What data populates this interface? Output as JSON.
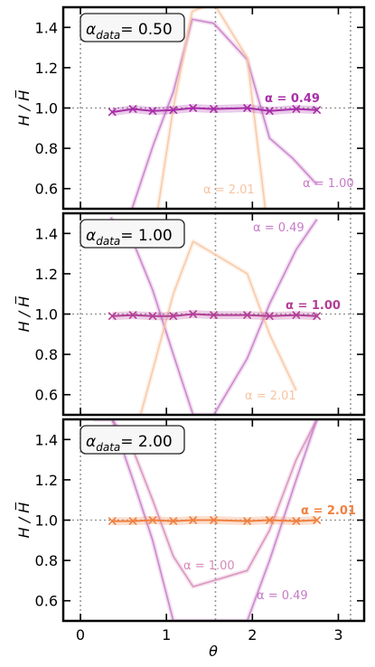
{
  "chart_data": [
    {
      "type": "line",
      "panel_label": {
        "prefix": "α",
        "subscript": "data",
        "value": "= 0.50"
      },
      "ylim": [
        0.5,
        1.5
      ],
      "ylabel": "H / H̅",
      "yticks": [
        "0.6",
        "0.8",
        "1.0",
        "1.2",
        "1.4"
      ],
      "xlim": [
        -0.2,
        3.3
      ],
      "vlines": [
        0,
        1.5708,
        3.1416
      ],
      "hline": 1.0,
      "grid": false,
      "series": [
        {
          "name": "α = 0.49",
          "label_text": "α = 0.49",
          "bold": true,
          "color": "#a82ea8",
          "markers": true,
          "x": [
            0.37,
            0.61,
            0.84,
            1.08,
            1.31,
            1.55,
            1.94,
            2.2,
            2.51,
            2.75
          ],
          "y": [
            0.98,
            0.995,
            0.985,
            0.99,
            1.0,
            0.995,
            1.0,
            0.985,
            0.995,
            0.99
          ]
        },
        {
          "name": "α = 1.00",
          "label_text": "α = 1.00",
          "bold": false,
          "color": "#c77ac7",
          "markers": false,
          "x": [
            0.6,
            0.85,
            1.08,
            1.3,
            1.55,
            1.94,
            2.2,
            2.47,
            2.75
          ],
          "y": [
            0.5,
            0.82,
            1.08,
            1.44,
            1.42,
            1.24,
            0.85,
            0.75,
            0.62
          ]
        },
        {
          "name": "α = 2.01",
          "label_text": "α = 2.01",
          "bold": false,
          "color": "#f7c4a0",
          "markers": false,
          "x": [
            0.9,
            1.08,
            1.3,
            1.55,
            1.94,
            2.15
          ],
          "y": [
            0.5,
            1.0,
            1.48,
            1.52,
            1.25,
            0.5
          ]
        }
      ]
    },
    {
      "type": "line",
      "panel_label": {
        "prefix": "α",
        "subscript": "data",
        "value": "= 1.00"
      },
      "ylim": [
        0.5,
        1.5
      ],
      "ylabel": "H / H̅",
      "yticks": [
        "0.6",
        "0.8",
        "1.0",
        "1.2",
        "1.4"
      ],
      "xlim": [
        -0.2,
        3.3
      ],
      "vlines": [
        0,
        1.5708,
        3.1416
      ],
      "hline": 1.0,
      "grid": false,
      "series": [
        {
          "name": "α = 1.00",
          "label_text": "α = 1.00",
          "bold": true,
          "color": "#b33f96",
          "markers": true,
          "x": [
            0.37,
            0.61,
            0.84,
            1.08,
            1.31,
            1.55,
            1.94,
            2.2,
            2.51,
            2.75
          ],
          "y": [
            0.99,
            0.995,
            0.99,
            0.99,
            1.0,
            0.995,
            0.995,
            0.99,
            0.995,
            0.99
          ]
        },
        {
          "name": "α = 0.49",
          "label_text": "α = 0.49",
          "bold": false,
          "color": "#c77ac7",
          "markers": false,
          "x": [
            0.35,
            0.61,
            0.84,
            1.08,
            1.31,
            1.55,
            1.94,
            2.2,
            2.51,
            2.75
          ],
          "y": [
            1.48,
            1.36,
            1.12,
            0.8,
            0.5,
            0.5,
            0.78,
            1.05,
            1.32,
            1.47
          ]
        },
        {
          "name": "α = 2.01",
          "label_text": "α = 2.01",
          "bold": false,
          "color": "#f7c4a0",
          "markers": false,
          "x": [
            0.7,
            0.84,
            1.08,
            1.31,
            1.55,
            1.94,
            2.2,
            2.51
          ],
          "y": [
            0.5,
            0.72,
            1.1,
            1.36,
            1.3,
            1.2,
            0.9,
            0.62
          ]
        }
      ]
    },
    {
      "type": "line",
      "panel_label": {
        "prefix": "α",
        "subscript": "data",
        "value": "= 2.00"
      },
      "ylim": [
        0.5,
        1.5
      ],
      "ylabel": "H / H̅",
      "yticks": [
        "0.6",
        "0.8",
        "1.0",
        "1.2",
        "1.4"
      ],
      "xlim": [
        -0.2,
        3.3
      ],
      "xlabel": "θ",
      "xticks": [
        "0",
        "1",
        "2",
        "3"
      ],
      "xtick_values": [
        0,
        1,
        2,
        3
      ],
      "vlines": [
        0,
        1.5708,
        3.1416
      ],
      "hline": 1.0,
      "grid": false,
      "series": [
        {
          "name": "α = 2.01",
          "label_text": "α = 2.01",
          "bold": true,
          "color": "#f08040",
          "markers": true,
          "x": [
            0.37,
            0.61,
            0.84,
            1.08,
            1.31,
            1.55,
            1.94,
            2.2,
            2.51,
            2.75
          ],
          "y": [
            0.995,
            0.995,
            1.0,
            0.995,
            1.0,
            1.0,
            0.995,
            1.0,
            0.995,
            1.0
          ]
        },
        {
          "name": "α = 1.00",
          "label_text": "α = 1.00",
          "bold": false,
          "color": "#d68ab8",
          "markers": false,
          "x": [
            0.37,
            0.61,
            0.84,
            1.08,
            1.31,
            1.55,
            1.94,
            2.2,
            2.51,
            2.75
          ],
          "y": [
            1.5,
            1.35,
            1.1,
            0.82,
            0.67,
            0.7,
            0.75,
            0.95,
            1.3,
            1.5
          ]
        },
        {
          "name": "α = 0.49",
          "label_text": "α = 0.49",
          "bold": false,
          "color": "#c77ac7",
          "markers": false,
          "x": [
            0.15,
            0.37,
            0.61,
            0.84,
            1.08,
            1.31,
            1.55,
            1.94,
            2.2,
            2.51,
            2.75
          ],
          "y": [
            1.5,
            1.5,
            1.2,
            0.9,
            0.5,
            0.5,
            0.5,
            0.5,
            0.8,
            1.2,
            1.5
          ]
        }
      ]
    }
  ]
}
